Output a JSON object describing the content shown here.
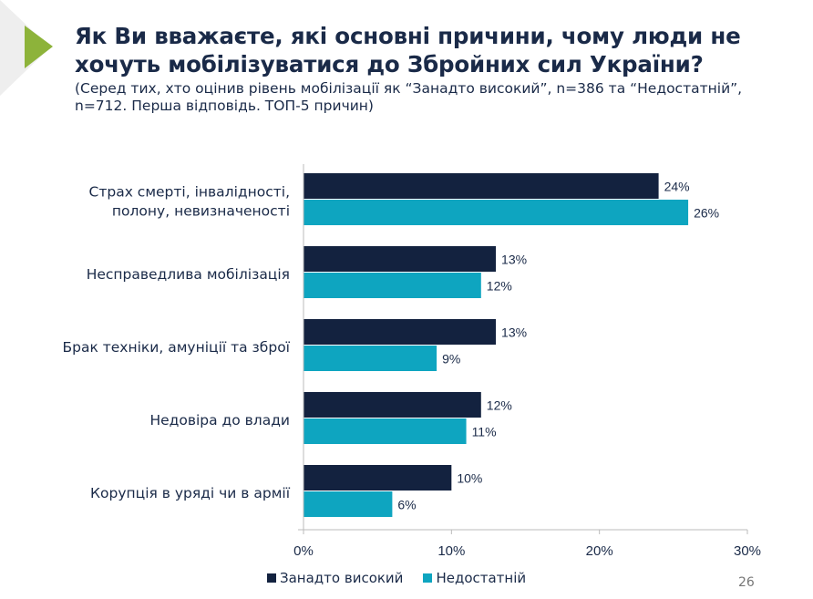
{
  "header": {
    "title": "Як Ви вважаєте, які основні причини, чому люди не хочуть мобілізуватися до Збройних сил України?",
    "subtitle": "(Серед тих, хто оцінив рівень мобілізації як “Занадто високий”, n=386 та “Недостатній”, n=712. Перша відповідь. ТОП-5 причин)"
  },
  "page_number": "26",
  "colors": {
    "accent_green": "#8db33a",
    "series_dark": "#13223f",
    "series_teal": "#0ea5c0"
  },
  "chart_data": {
    "type": "bar",
    "orientation": "horizontal",
    "categories": [
      "Страх смерті, інвалідності, полону, невизначеності",
      "Несправедлива мобілізація",
      "Брак техніки, амуніції та зброї",
      "Недовіра до влади",
      "Корупція в уряді чи в армії"
    ],
    "category_lines": [
      [
        "Страх смерті, інвалідності,",
        "полону, невизначеності"
      ],
      [
        "Несправедлива мобілізація"
      ],
      [
        "Брак техніки, амуніції та зброї"
      ],
      [
        "Недовіра до влади"
      ],
      [
        "Корупція в уряді чи в армії"
      ]
    ],
    "series": [
      {
        "name": "Занадто високий",
        "color": "#13223f",
        "values": [
          24,
          13,
          13,
          12,
          10
        ]
      },
      {
        "name": "Недостатній",
        "color": "#0ea5c0",
        "values": [
          26,
          12,
          9,
          11,
          6
        ]
      }
    ],
    "xlim": [
      0,
      30
    ],
    "xticks": [
      0,
      10,
      20,
      30
    ],
    "xtick_labels": [
      "0%",
      "10%",
      "20%",
      "30%"
    ],
    "value_suffix": "%",
    "grid": false,
    "legend_position": "bottom-left"
  }
}
